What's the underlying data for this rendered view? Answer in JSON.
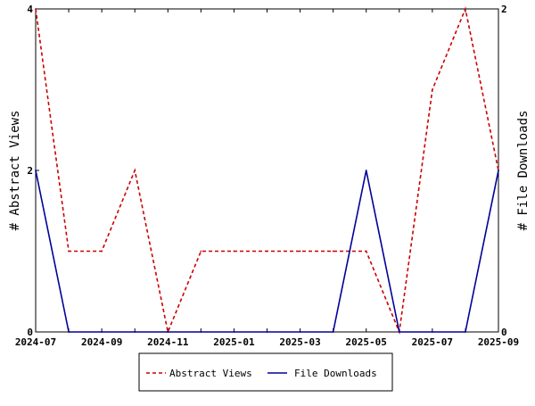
{
  "chart_data": {
    "type": "line",
    "x": [
      "2024-07",
      "2024-08",
      "2024-09",
      "2024-10",
      "2024-11",
      "2024-12",
      "2025-01",
      "2025-02",
      "2025-03",
      "2025-04",
      "2025-05",
      "2025-06",
      "2025-07",
      "2025-08",
      "2025-09"
    ],
    "x_tick_labels": [
      "2024-07",
      "2024-09",
      "2024-11",
      "2025-01",
      "2025-03",
      "2025-05",
      "2025-07",
      "2025-09"
    ],
    "series": [
      {
        "name": "Abstract Views",
        "axis": "left",
        "color": "#cc0000",
        "dash": "dashed",
        "values": [
          4,
          1,
          1,
          2,
          0,
          1,
          1,
          1,
          1,
          1,
          1,
          0,
          3,
          4,
          2
        ]
      },
      {
        "name": "File Downloads",
        "axis": "right",
        "color": "#000099",
        "dash": "solid",
        "values": [
          1,
          0,
          0,
          0,
          0,
          0,
          0,
          0,
          0,
          0,
          1,
          0,
          0,
          0,
          1
        ]
      }
    ],
    "ylabel_left": "# Abstract Views",
    "ylabel_right": "# File Downloads",
    "ylim_left": [
      0,
      4
    ],
    "yticks_left": [
      "0",
      "2",
      "4"
    ],
    "ylim_right": [
      0,
      2
    ],
    "yticks_right": [
      "0",
      "2"
    ],
    "grid": "none",
    "legend_position": "bottom"
  }
}
